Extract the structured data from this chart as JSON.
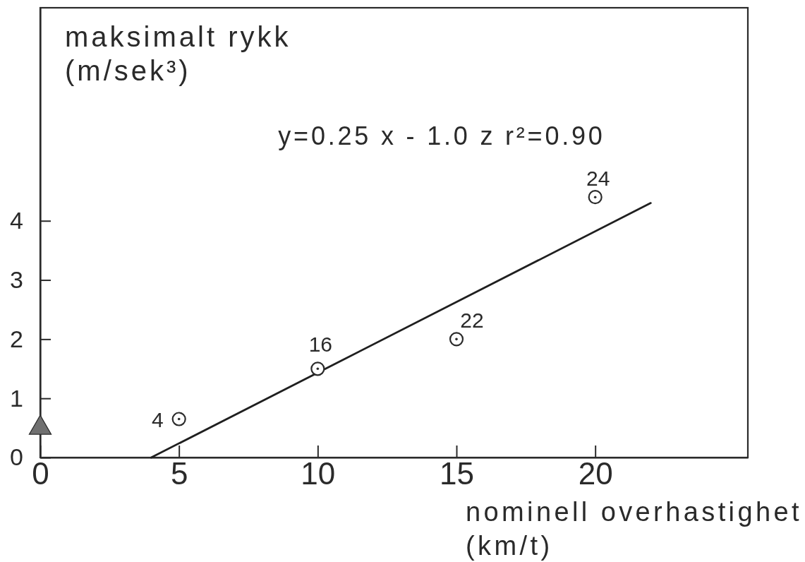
{
  "chart_data": {
    "type": "scatter",
    "ylabel": "maksimalt rykk\n(m/sek³)",
    "xlabel": "nominell overhastighet\n(km/t)",
    "xlim": [
      0,
      25.5
    ],
    "ylim": [
      0,
      7.6
    ],
    "xticks": [
      0,
      5,
      10,
      15,
      20
    ],
    "yticks": [
      0,
      1,
      2,
      3,
      4
    ],
    "series": [
      {
        "marker": "circle",
        "color": "#2b2b2b",
        "x": [
          5,
          10,
          15,
          20
        ],
        "values": [
          0.65,
          1.5,
          2.0,
          4.4
        ]
      },
      {
        "type": "line",
        "color": "#1f1f1f",
        "x": [
          4,
          22
        ],
        "values": [
          0,
          4.3
        ]
      },
      {
        "marker": "triangle",
        "color": "#707070",
        "x": [
          0
        ],
        "values": [
          0.5
        ]
      }
    ],
    "annotations": [
      "y=0.25 x - 1.0 z  r²=0.90",
      {
        "text": "4",
        "x": 5,
        "y": 0.65
      },
      {
        "text": "16",
        "x": 10,
        "y": 1.5
      },
      {
        "text": "22",
        "x": 15,
        "y": 2.0
      },
      {
        "text": "24",
        "x": 20,
        "y": 4.4
      }
    ]
  }
}
